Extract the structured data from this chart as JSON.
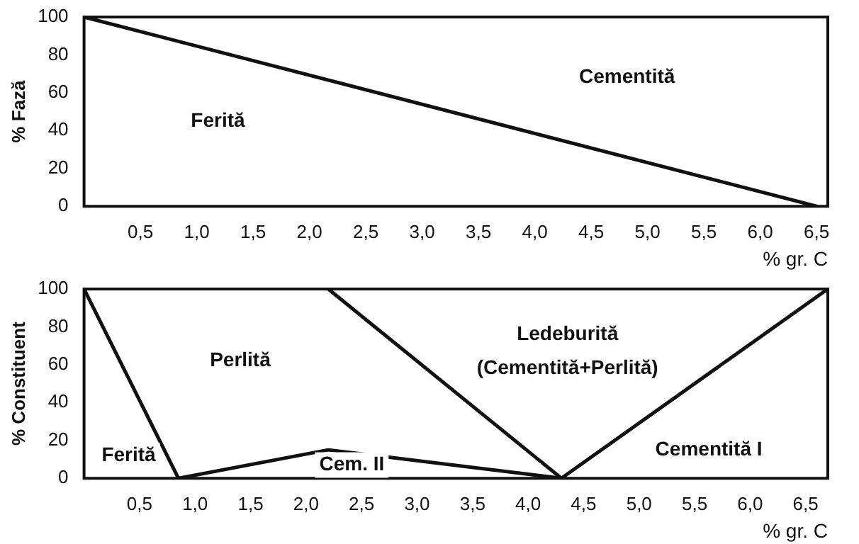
{
  "chart_data": [
    {
      "type": "line",
      "xlabel": "% gr. C",
      "ylabel": "% Fază",
      "xlim": [
        0,
        6.6
      ],
      "ylim": [
        0,
        100
      ],
      "yticks": [
        0,
        20,
        40,
        60,
        80,
        100
      ],
      "xticks": [
        {
          "value": 0.5,
          "label": "0,5"
        },
        {
          "value": 1,
          "label": "1,0"
        },
        {
          "value": 1.5,
          "label": "1,5"
        },
        {
          "value": 2,
          "label": "2,0"
        },
        {
          "value": 2.5,
          "label": "2,5"
        },
        {
          "value": 3,
          "label": "3,0"
        },
        {
          "value": 3.5,
          "label": "3,5"
        },
        {
          "value": 4,
          "label": "4,0"
        },
        {
          "value": 4.5,
          "label": "4,5"
        },
        {
          "value": 5,
          "label": "5,0"
        },
        {
          "value": 5.5,
          "label": "5,5"
        },
        {
          "value": 6,
          "label": "6,0"
        },
        {
          "value": 6.5,
          "label": "6,5"
        }
      ],
      "series": [
        {
          "color": "#111111",
          "x": [
            0,
            6.5
          ],
          "values": [
            100,
            0
          ]
        }
      ],
      "grid": false,
      "legend": false,
      "marker": "none",
      "line_style": "solid",
      "annotations": [
        "Ferită",
        "Cementită"
      ]
    },
    {
      "type": "line",
      "xlabel": "% gr. C",
      "ylabel": "% Constituent",
      "xlim": [
        0,
        6.7
      ],
      "ylim": [
        0,
        100
      ],
      "yticks": [
        0,
        20,
        40,
        60,
        80,
        100
      ],
      "xticks": [
        {
          "value": 0.5,
          "label": "0,5"
        },
        {
          "value": 1,
          "label": "1,0"
        },
        {
          "value": 1.5,
          "label": "1,5"
        },
        {
          "value": 2,
          "label": "2,0"
        },
        {
          "value": 2.5,
          "label": "2,5"
        },
        {
          "value": 3,
          "label": "3,0"
        },
        {
          "value": 3.5,
          "label": "3,5"
        },
        {
          "value": 4,
          "label": "4,0"
        },
        {
          "value": 4.5,
          "label": "4,5"
        },
        {
          "value": 5,
          "label": "5,0"
        },
        {
          "value": 5.5,
          "label": "5,5"
        },
        {
          "value": 6,
          "label": "6,0"
        },
        {
          "value": 6.5,
          "label": "6,5"
        }
      ],
      "series": [
        {
          "color": "#111111",
          "x": [
            0,
            0.85
          ],
          "values": [
            100,
            0
          ]
        },
        {
          "color": "#111111",
          "x": [
            0.85,
            2.2,
            4.3
          ],
          "values": [
            0,
            15,
            0
          ]
        },
        {
          "color": "#111111",
          "x": [
            2.2,
            4.3
          ],
          "values": [
            100,
            0
          ]
        },
        {
          "color": "#111111",
          "x": [
            4.3,
            6.7
          ],
          "values": [
            0,
            100
          ]
        }
      ],
      "grid": false,
      "legend": false,
      "marker": "none",
      "line_style": "solid",
      "annotations": [
        "Ferită",
        "Perlită",
        "Cem. II",
        "Ledeburită",
        "(Cementită+Perlită)",
        "Cementită I"
      ]
    }
  ]
}
